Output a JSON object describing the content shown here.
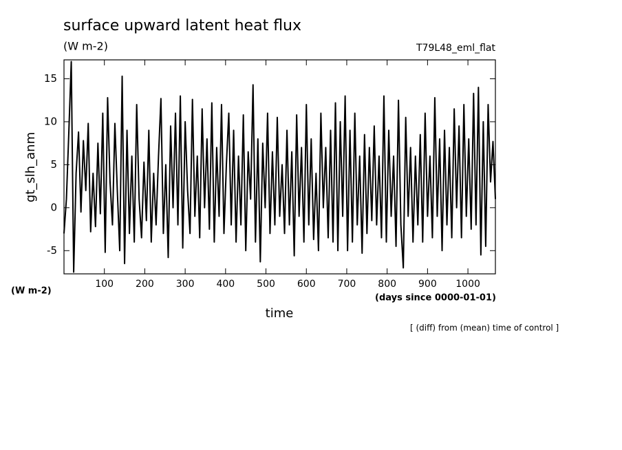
{
  "chart_data": {
    "type": "line",
    "title": "surface upward latent heat flux",
    "subtitle": "(W m-2)",
    "run_label": "T79L48_eml_flat",
    "y_label": "gt_slh_anm",
    "y_unit": "(W m-2)",
    "x_label": "time",
    "x_unit": "(days since 0000-01-01)",
    "note": "[ (diff) from (mean) time of control ]",
    "color": "#000000",
    "xlim": [
      0,
      1068
    ],
    "ylim": [
      -7.7,
      17.2
    ],
    "xticks": [
      100,
      200,
      300,
      400,
      500,
      600,
      700,
      800,
      900,
      1000
    ],
    "yticks": [
      -5,
      0,
      5,
      10,
      15
    ],
    "x": [
      0,
      6,
      12,
      18,
      24,
      30,
      36,
      42,
      48,
      54,
      60,
      66,
      72,
      78,
      84,
      90,
      96,
      102,
      108,
      114,
      120,
      126,
      132,
      138,
      144,
      150,
      156,
      162,
      168,
      174,
      180,
      186,
      192,
      198,
      204,
      210,
      216,
      222,
      228,
      234,
      240,
      246,
      252,
      258,
      264,
      270,
      276,
      282,
      288,
      294,
      300,
      306,
      312,
      318,
      324,
      330,
      336,
      342,
      348,
      354,
      360,
      366,
      372,
      378,
      384,
      390,
      396,
      402,
      408,
      414,
      420,
      426,
      432,
      438,
      444,
      450,
      456,
      462,
      468,
      474,
      480,
      486,
      492,
      498,
      504,
      510,
      516,
      522,
      528,
      534,
      540,
      546,
      552,
      558,
      564,
      570,
      576,
      582,
      588,
      594,
      600,
      606,
      612,
      618,
      624,
      630,
      636,
      642,
      648,
      654,
      660,
      666,
      672,
      678,
      684,
      690,
      696,
      702,
      708,
      714,
      720,
      726,
      732,
      738,
      744,
      750,
      756,
      762,
      768,
      774,
      780,
      786,
      792,
      798,
      804,
      810,
      816,
      822,
      828,
      834,
      840,
      846,
      852,
      858,
      864,
      870,
      876,
      882,
      888,
      894,
      900,
      906,
      912,
      918,
      924,
      930,
      936,
      942,
      948,
      954,
      960,
      966,
      972,
      978,
      984,
      990,
      996,
      1002,
      1008,
      1014,
      1020,
      1026,
      1032,
      1038,
      1044,
      1050,
      1056,
      1062,
      1068
    ],
    "values": [
      -3,
      1,
      8.8,
      17,
      -7.5,
      4,
      8.8,
      -0.5,
      7.8,
      2,
      9.8,
      -2.8,
      4,
      -2.2,
      7.5,
      -0.7,
      11,
      -5.2,
      12.8,
      3,
      -2,
      9.8,
      2,
      -5,
      15.3,
      -6.5,
      9,
      -3,
      6,
      -4,
      12,
      1,
      -3.5,
      5.3,
      -1.5,
      9,
      -4,
      4,
      -2,
      6,
      12.7,
      -3,
      5,
      -5.8,
      9.5,
      0,
      11,
      -2,
      13,
      -4.7,
      10,
      2,
      -3,
      12.6,
      -1,
      6,
      -3.5,
      11.5,
      0,
      8,
      -2.5,
      12.2,
      -4,
      7,
      -1,
      12,
      -3,
      5,
      11,
      -2,
      9,
      -4,
      6,
      -2,
      10.8,
      -5,
      6.5,
      1,
      14.3,
      -4,
      8,
      -6.3,
      7.5,
      0,
      11,
      -3,
      6.5,
      -2,
      10.5,
      -1,
      5,
      -3,
      9,
      -2,
      6.5,
      -5.6,
      10.8,
      -1,
      7,
      -4,
      12,
      -2,
      8,
      -3.7,
      4,
      -5,
      11,
      0,
      7,
      -3.5,
      9,
      -4,
      12.2,
      -5,
      10,
      -1,
      13,
      -5,
      9,
      -4,
      11,
      -2,
      6,
      -5.3,
      8.5,
      -3,
      7,
      -1.5,
      9.5,
      -2,
      6,
      -3.5,
      13,
      -4,
      9,
      -1,
      6,
      -4.5,
      12.5,
      -2,
      -7,
      10.5,
      -1,
      7,
      -4,
      6,
      -2,
      8.5,
      -4,
      11,
      -1,
      6,
      -3.5,
      12.8,
      -1,
      8,
      -5,
      9,
      -2,
      7,
      -3.5,
      11.5,
      0,
      9.5,
      -3.5,
      12,
      -1,
      8,
      -2.5,
      13.3,
      -2,
      14,
      -5.5,
      10,
      -4.5,
      12,
      3,
      7.7,
      1
    ]
  }
}
